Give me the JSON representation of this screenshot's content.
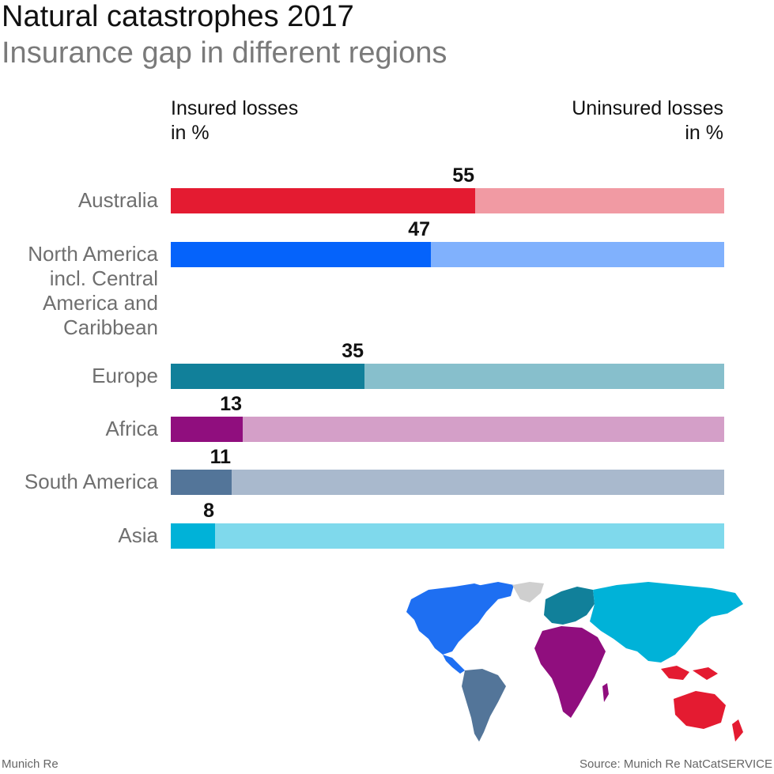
{
  "title": "Natural catastrophes 2017",
  "subtitle": "Insurance gap in different regions",
  "header_left": [
    "Insured losses",
    "in %"
  ],
  "header_right": [
    "Uninsured losses",
    "in %"
  ],
  "footer_left": "Munich Re",
  "footer_right": "Source: Munich Re NatCatSERVICE",
  "chart_data": {
    "type": "bar",
    "orientation": "horizontal",
    "stacked": true,
    "title": "Natural catastrophes 2017",
    "subtitle": "Insurance gap in different regions",
    "xlim": [
      0,
      100
    ],
    "categories": [
      [
        "Australia"
      ],
      [
        "North America",
        "incl. Central",
        "America and",
        "Caribbean"
      ],
      [
        "Europe"
      ],
      [
        "Africa"
      ],
      [
        "South America"
      ],
      [
        "Asia"
      ]
    ],
    "series": [
      {
        "name": "Insured losses in %",
        "values": [
          55,
          47,
          35,
          13,
          11,
          8
        ]
      },
      {
        "name": "Uninsured losses in %",
        "values": [
          45,
          53,
          65,
          87,
          89,
          92
        ]
      }
    ],
    "colors": {
      "insured": [
        "#e41b31",
        "#0563fb",
        "#11809a",
        "#900e7e",
        "#537599",
        "#00b2d8"
      ],
      "uninsured": [
        "#f19aa3",
        "#80b1fd",
        "#87bfcc",
        "#d49fc8",
        "#a9b9cd",
        "#7fd9ec"
      ]
    }
  }
}
